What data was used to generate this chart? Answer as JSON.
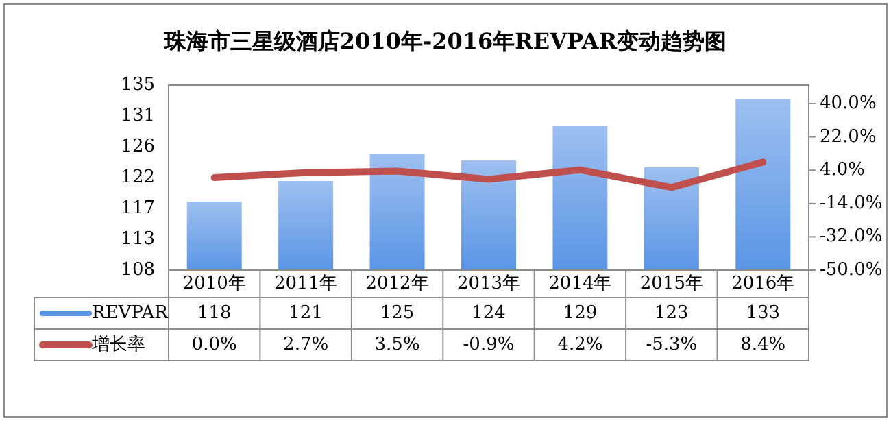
{
  "chart_data": {
    "type": "bar",
    "title": "珠海市三星级酒店2010年-2016年REVPAR变动趋势图",
    "categories": [
      "2010年",
      "2011年",
      "2012年",
      "2013年",
      "2014年",
      "2015年",
      "2016年"
    ],
    "series": [
      {
        "name": "REVPAR",
        "color": "#5b95e5",
        "values": [
          118,
          121,
          125,
          124,
          129,
          123,
          133
        ],
        "value_labels": [
          "118",
          "121",
          "125",
          "124",
          "129",
          "123",
          "133"
        ]
      },
      {
        "name": "增长率",
        "type": "line",
        "axis": "y2",
        "color": "#c0504d",
        "values": [
          0.0,
          2.7,
          3.5,
          -0.9,
          4.2,
          -5.3,
          8.4
        ],
        "value_labels": [
          "0.0%",
          "2.7%",
          "3.5%",
          "-0.9%",
          "4.2%",
          "-5.3%",
          "8.4%"
        ]
      }
    ],
    "ylim": [
      108,
      135
    ],
    "yticks": [
      108,
      {
        "value": 112.5,
        "label": "113"
      },
      117,
      {
        "value": 121.5,
        "label": "122"
      },
      126,
      {
        "value": 130.5,
        "label": "131"
      },
      135
    ],
    "y2lim": [
      -50,
      50
    ],
    "y2ticks": [
      {
        "value": -50,
        "label": "-50.0%"
      },
      {
        "value": -32,
        "label": "-32.0%"
      },
      {
        "value": -14,
        "label": "-14.0%"
      },
      {
        "value": 4,
        "label": "4.0%"
      },
      {
        "value": 22,
        "label": "22.0%"
      },
      {
        "value": 40,
        "label": "40.0%"
      }
    ],
    "legend": "bottom"
  }
}
